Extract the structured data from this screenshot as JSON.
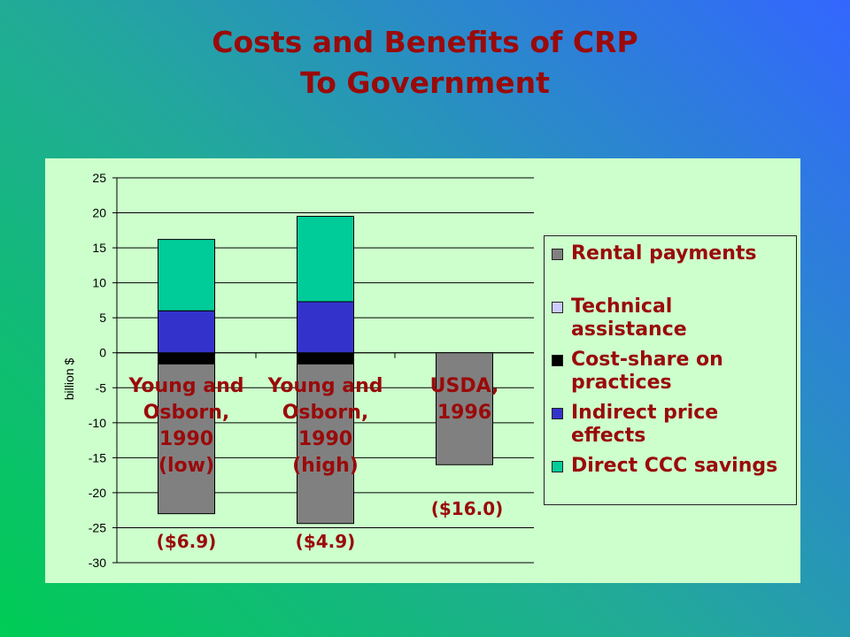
{
  "slide": {
    "title_line1": "Costs and Benefits of CRP",
    "title_line2": "To Government"
  },
  "chart_data": {
    "type": "bar",
    "stacked": true,
    "ylabel": "billion $",
    "ylim": [
      -30,
      25
    ],
    "yticks": [
      25,
      20,
      15,
      10,
      5,
      0,
      -5,
      -10,
      -15,
      -20,
      -25,
      -30
    ],
    "grid": true,
    "legend_position": "right",
    "categories": [
      "Young and\nOsborn,\n1990\n(low)",
      "Young and\nOsborn,\n1990\n(high)",
      "USDA,\n1996"
    ],
    "series": [
      {
        "name": "Rental payments",
        "color": "#808080",
        "values": [
          -21.4,
          -22.8,
          -16.0
        ]
      },
      {
        "name": "Technical\nassistance",
        "color": "#ccccff",
        "values": [
          0,
          0,
          0
        ]
      },
      {
        "name": "Cost-share on\npractices",
        "color": "#000000",
        "values": [
          -1.6,
          -1.6,
          0
        ]
      },
      {
        "name": "Indirect price\neffects",
        "color": "#3333cc",
        "values": [
          6.0,
          7.3,
          0
        ]
      },
      {
        "name": "Direct CCC savings",
        "color": "#00cc99",
        "values": [
          10.2,
          12.2,
          0
        ]
      }
    ],
    "net_labels": [
      "($6.9)",
      "($4.9)",
      "($16.0)"
    ]
  }
}
